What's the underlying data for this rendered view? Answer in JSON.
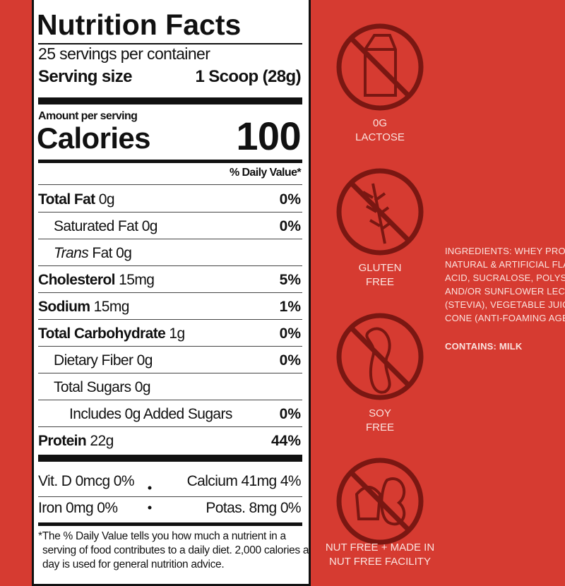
{
  "nutrition_facts": {
    "title": "Nutrition Facts",
    "servings": "25 servings per container",
    "serving_size_label": "Serving size",
    "serving_size": "1 Scoop (28g)",
    "amount_per_serving": "Amount per serving",
    "calories_label": "Calories",
    "calories": "100",
    "daily_value_header": "% Daily Value*",
    "rows": [
      {
        "name": "Total Fat",
        "amount": "0g",
        "dv": "0%"
      },
      {
        "name": "Saturated Fat",
        "amount": "0g",
        "dv": "0%"
      },
      {
        "name_italic": "Trans",
        "name": "Fat",
        "amount": "0g"
      },
      {
        "name": "Cholesterol",
        "amount": "15mg",
        "dv": "5%"
      },
      {
        "name": "Sodium",
        "amount": "15mg",
        "dv": "1%"
      },
      {
        "name": "Total Carbohydrate",
        "amount": "1g",
        "dv": "0%"
      },
      {
        "name": "Dietary Fiber",
        "amount": "0g",
        "dv": "0%"
      },
      {
        "name": "Total Sugars",
        "amount": "0g"
      },
      {
        "name": "Includes 0g Added Sugars",
        "dv": "0%"
      },
      {
        "name": "Protein",
        "amount": "22g",
        "dv": "44%"
      }
    ],
    "vitamins": [
      [
        "Vit. D 0mcg 0%",
        "Calcium 41mg 4%"
      ],
      [
        "Iron 0mg 0%",
        "Potas. 8mg 0%"
      ]
    ],
    "footnote": [
      "*The % Daily Value tells you how much a nutrient in a",
      "serving of food contributes to a daily diet. 2,000 calories a",
      "day is used for general nutrition advice."
    ]
  },
  "badges": [
    {
      "lines": [
        "0G",
        "LACTOSE"
      ]
    },
    {
      "lines": [
        "GLUTEN",
        "FREE"
      ]
    },
    {
      "lines": [
        "SOY",
        "FREE"
      ]
    },
    {
      "lines": [
        "NUT FREE + MADE IN",
        "NUT FREE FACILITY"
      ]
    }
  ],
  "ingredients": {
    "lines": [
      "INGREDIENTS: WHEY PRO",
      "NATURAL & ARTIFICIAL FLA",
      "ACID, SUCRALOSE, POLYSO",
      "AND/OR SUNFLOWER LECIT",
      "(STEVIA), VEGETABLE JUICE",
      "CONE (ANTI-FOAMING AGEN"
    ],
    "contains": "CONTAINS: MILK"
  }
}
